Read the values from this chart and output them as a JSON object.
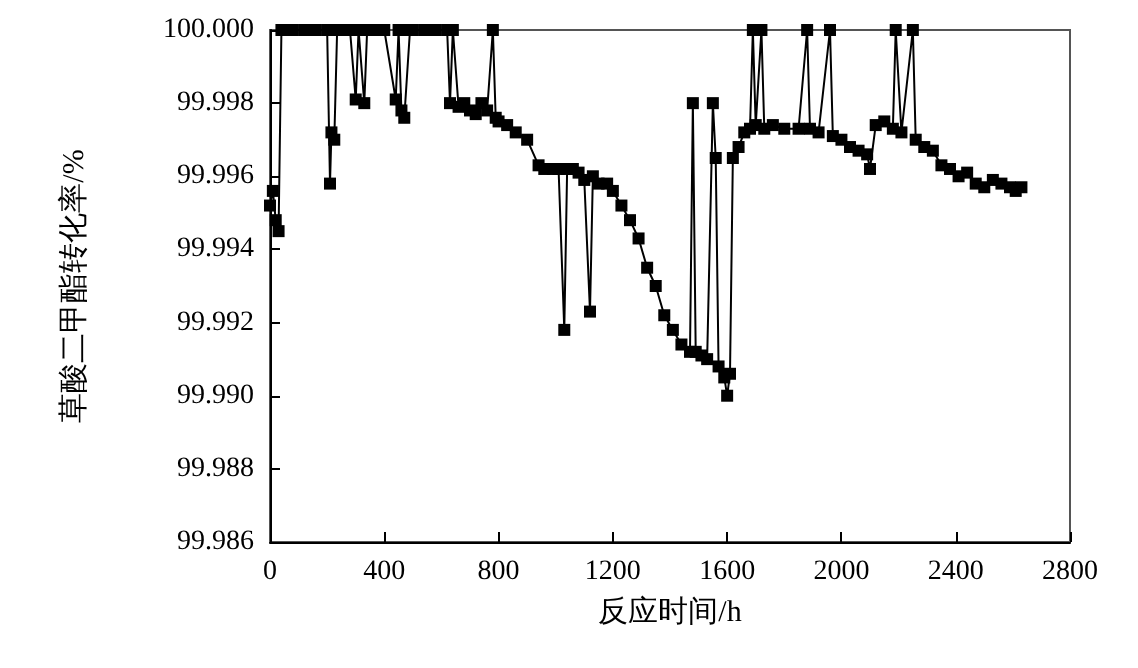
{
  "chart_data": {
    "type": "line",
    "xlabel": "反应时间/h",
    "ylabel": "草酸二甲酯转化率/%",
    "marker": "square",
    "line_style": "solid",
    "grid": false,
    "xlim": [
      0,
      2800
    ],
    "xticks": [
      0,
      400,
      800,
      1200,
      1600,
      2000,
      2400,
      2800
    ],
    "ylim": [
      99.986,
      100
    ],
    "yticks": [
      {
        "value": 99.986,
        "label": "99.986"
      },
      {
        "value": 99.988,
        "label": "99.988"
      },
      {
        "value": 99.99,
        "label": "99.990"
      },
      {
        "value": 99.992,
        "label": "99.992"
      },
      {
        "value": 99.994,
        "label": "99.994"
      },
      {
        "value": 99.996,
        "label": "99.996"
      },
      {
        "value": 99.998,
        "label": "99.998"
      },
      {
        "value": 100,
        "label": "100.000"
      }
    ],
    "series": [
      {
        "color": "#000000",
        "x": [
          0,
          10,
          20,
          30,
          40,
          50,
          80,
          120,
          160,
          200,
          210,
          215,
          225,
          235,
          245,
          280,
          300,
          310,
          330,
          340,
          350,
          370,
          400,
          440,
          450,
          460,
          470,
          490,
          500,
          540,
          580,
          620,
          630,
          640,
          660,
          680,
          700,
          720,
          740,
          760,
          780,
          790,
          800,
          830,
          860,
          900,
          940,
          960,
          990,
          1010,
          1030,
          1040,
          1060,
          1080,
          1100,
          1120,
          1130,
          1150,
          1180,
          1200,
          1230,
          1260,
          1290,
          1320,
          1350,
          1380,
          1410,
          1440,
          1470,
          1480,
          1490,
          1510,
          1530,
          1550,
          1560,
          1570,
          1590,
          1600,
          1610,
          1620,
          1640,
          1660,
          1680,
          1690,
          1700,
          1720,
          1730,
          1760,
          1800,
          1850,
          1880,
          1890,
          1920,
          1960,
          1970,
          2000,
          2030,
          2060,
          2090,
          2100,
          2120,
          2150,
          2180,
          2190,
          2210,
          2250,
          2260,
          2290,
          2320,
          2350,
          2380,
          2410,
          2440,
          2470,
          2500,
          2530,
          2560,
          2590,
          2610,
          2630
        ],
        "values": [
          99.9952,
          99.9956,
          99.9948,
          99.9945,
          100,
          100,
          100,
          100,
          100,
          100,
          99.9958,
          99.9972,
          99.997,
          100,
          100,
          100,
          99.9981,
          100,
          99.998,
          100,
          100,
          100,
          100,
          99.9981,
          100,
          99.9978,
          99.9976,
          100,
          100,
          100,
          100,
          100,
          99.998,
          100,
          99.9979,
          99.998,
          99.9978,
          99.9977,
          99.998,
          99.9978,
          100,
          99.9976,
          99.9975,
          99.9974,
          99.9972,
          99.997,
          99.9963,
          99.9962,
          99.9962,
          99.9962,
          99.9918,
          99.9962,
          99.9962,
          99.9961,
          99.9959,
          99.9923,
          99.996,
          99.9958,
          99.9958,
          99.9956,
          99.9952,
          99.9948,
          99.9943,
          99.9935,
          99.993,
          99.9922,
          99.9918,
          99.9914,
          99.9912,
          99.998,
          99.9912,
          99.9911,
          99.991,
          99.998,
          99.9965,
          99.9908,
          99.9905,
          99.99,
          99.9906,
          99.9965,
          99.9968,
          99.9972,
          99.9973,
          100,
          99.9974,
          100,
          99.9973,
          99.9974,
          99.9973,
          99.9973,
          100,
          99.9973,
          99.9972,
          100,
          99.9971,
          99.997,
          99.9968,
          99.9967,
          99.9966,
          99.9962,
          99.9974,
          99.9975,
          99.9973,
          100,
          99.9972,
          100,
          99.997,
          99.9968,
          99.9967,
          99.9963,
          99.9962,
          99.996,
          99.9961,
          99.9958,
          99.9957,
          99.9959,
          99.9958,
          99.9957,
          99.9956,
          99.9957
        ]
      }
    ]
  }
}
